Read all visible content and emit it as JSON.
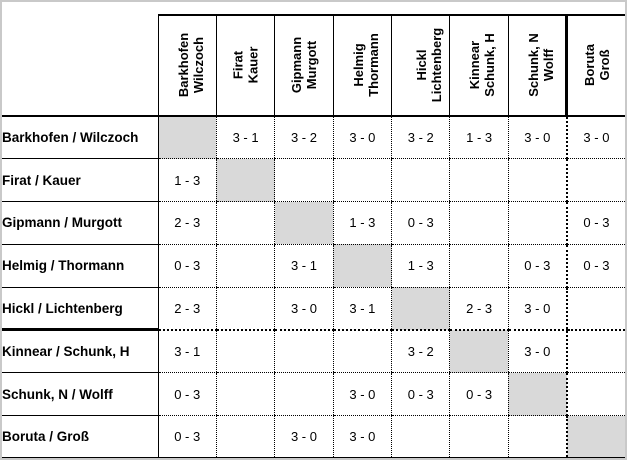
{
  "table": {
    "column_headers": [
      [
        "Barkhofen",
        "Wilczoch"
      ],
      [
        "Firat",
        "Kauer"
      ],
      [
        "Gipmann",
        "Murgott"
      ],
      [
        "Helmig",
        "Thormann"
      ],
      [
        "Hickl",
        "Lichtenberg"
      ],
      [
        "Kinnear",
        "Schunk, H"
      ],
      [
        "Schunk, N",
        "Wolff"
      ],
      [
        "Boruta",
        "Groß"
      ]
    ],
    "row_headers": [
      "Barkhofen / Wilczoch",
      "Firat / Kauer",
      "Gipmann / Murgott",
      "Helmig / Thormann",
      "Hickl / Lichtenberg",
      "Kinnear / Schunk, H",
      "Schunk, N / Wolff",
      "Boruta / Groß"
    ],
    "matrix": [
      [
        null,
        "3 - 1",
        "3 - 2",
        "3 - 0",
        "3 - 2",
        "1 - 3",
        "3 - 0",
        "3 - 0"
      ],
      [
        "1 - 3",
        null,
        "",
        "",
        "",
        "",
        "",
        ""
      ],
      [
        "2 - 3",
        "",
        null,
        "1 - 3",
        "0 - 3",
        "",
        "",
        "0 - 3"
      ],
      [
        "0 - 3",
        "",
        "3 - 1",
        null,
        "1 - 3",
        "",
        "0 - 3",
        "0 - 3"
      ],
      [
        "2 - 3",
        "",
        "3 - 0",
        "3 - 1",
        null,
        "2 - 3",
        "3 - 0",
        ""
      ],
      [
        "3 - 1",
        "",
        "",
        "",
        "3 - 2",
        null,
        "3 - 0",
        ""
      ],
      [
        "0 - 3",
        "",
        "",
        "3 - 0",
        "0 - 3",
        "0 - 3",
        null,
        ""
      ],
      [
        "0 - 3",
        "",
        "3 - 0",
        "3 - 0",
        "",
        "",
        "",
        null
      ]
    ],
    "thick_separator_after_row": 5,
    "thick_separator_before_column": 8,
    "diagonal_fill": "#d9d9d9",
    "grid_color": "#000000",
    "frame_color": "#c9c9c9"
  }
}
